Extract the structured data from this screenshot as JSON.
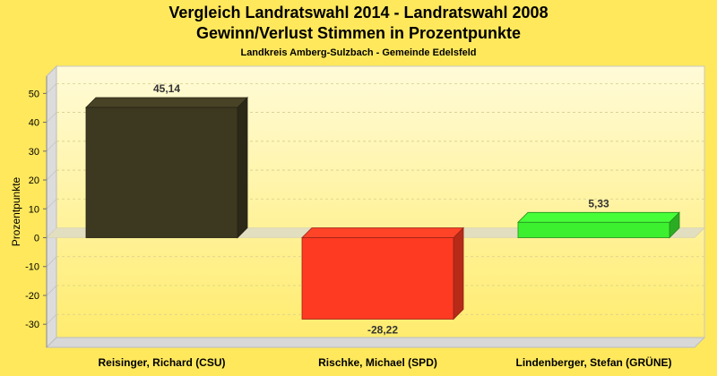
{
  "chart_data": {
    "type": "bar",
    "title": "Vergleich Landratswahl 2014 - Landratswahl 2008",
    "subtitle": "Gewinn/Verlust Stimmen in Prozentpunkte",
    "subsubtitle": "Landkreis Amberg-Sulzbach - Gemeinde Edelsfeld",
    "ylabel": "Prozentpunkte",
    "xlabel": "",
    "ylim": [
      -38,
      56
    ],
    "yticks": [
      50,
      40,
      30,
      20,
      10,
      0,
      -10,
      -20,
      -30
    ],
    "grid": true,
    "categories": [
      "Reisinger, Richard (CSU)",
      "Rischke, Michael (SPD)",
      "Lindenberger, Stefan (GRÜNE)"
    ],
    "values": [
      45.14,
      -28.22,
      5.33
    ],
    "value_labels": [
      "45,14",
      "-28,22",
      "5,33"
    ],
    "colors": [
      "#3D3820",
      "#FF3A22",
      "#3CF030"
    ]
  }
}
